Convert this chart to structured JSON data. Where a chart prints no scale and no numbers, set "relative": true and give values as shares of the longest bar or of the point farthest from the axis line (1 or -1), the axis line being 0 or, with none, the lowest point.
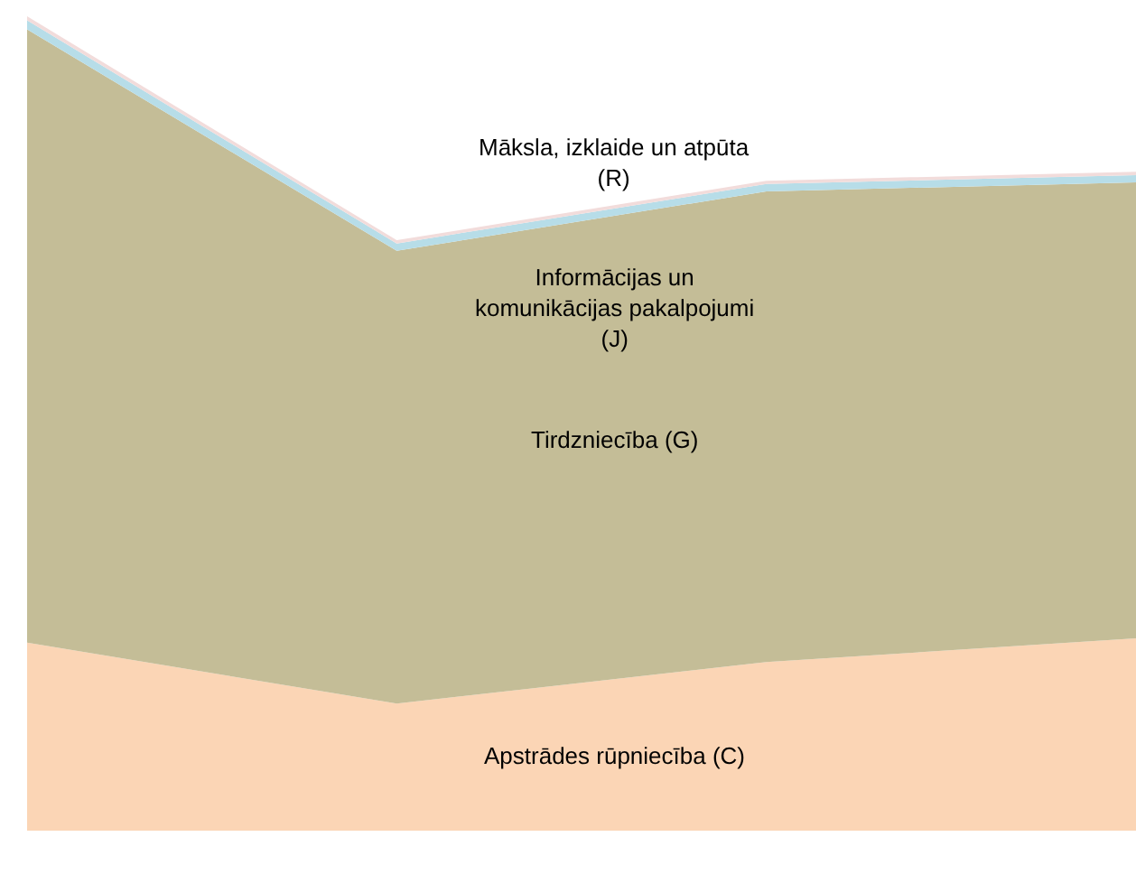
{
  "chart_data": {
    "type": "area",
    "stacked": true,
    "relative": true,
    "legend": false,
    "categories": [
      null,
      null,
      null,
      null
    ],
    "series": [
      {
        "name": "Apstrādes rūpniecība (C)",
        "color": "#fbd5b5",
        "values": [
          0.231,
          0.156,
          0.207,
          0.236
        ]
      },
      {
        "name": "Tirdzniecība (G)",
        "color": "#c4bd97",
        "values": [
          0.753,
          0.556,
          0.578,
          0.56
        ]
      },
      {
        "name": "Informācijas un komunikācijas pakalpojumi (J)",
        "color": "#b7dde8",
        "values": [
          0.011,
          0.009,
          0.009,
          0.009
        ]
      },
      {
        "name": "Māksla, izklaide un atpūta (R)",
        "color": "#f2dcdb",
        "values": [
          0.005,
          0.004,
          0.004,
          0.004
        ]
      }
    ]
  }
}
